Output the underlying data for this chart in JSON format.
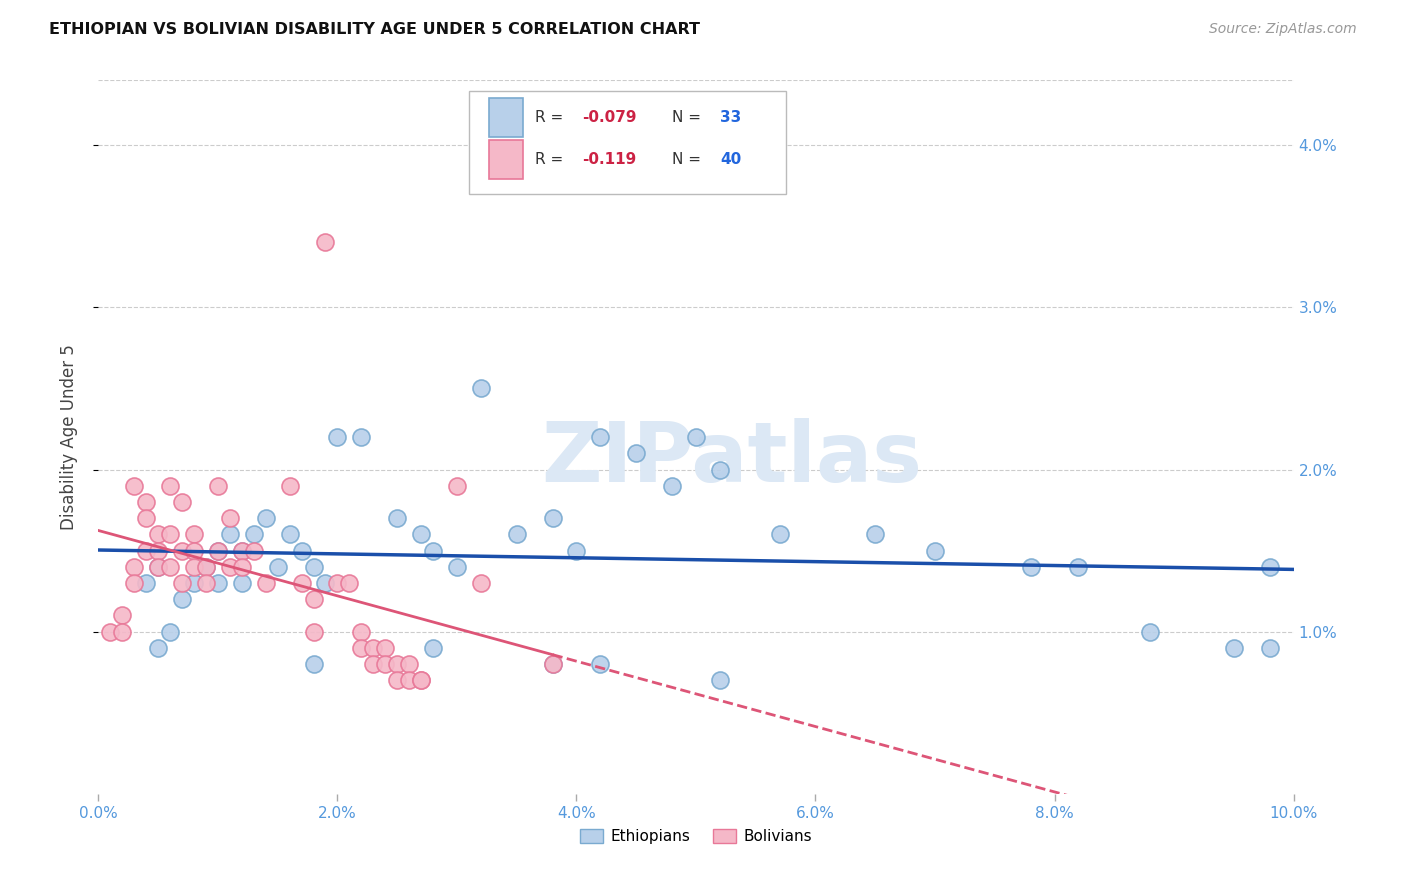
{
  "title": "ETHIOPIAN VS BOLIVIAN DISABILITY AGE UNDER 5 CORRELATION CHART",
  "source": "Source: ZipAtlas.com",
  "ylabel": "Disability Age Under 5",
  "xlim": [
    0.0,
    0.1
  ],
  "ylim": [
    0.0,
    0.044
  ],
  "ytick_positions": [
    0.01,
    0.02,
    0.03,
    0.04
  ],
  "xtick_positions": [
    0.0,
    0.02,
    0.04,
    0.06,
    0.08,
    0.1
  ],
  "legend_label_ethiopians": "Ethiopians",
  "legend_label_bolivians": "Bolivians",
  "ethiopians_scatter": [
    [
      0.004,
      0.013
    ],
    [
      0.005,
      0.014
    ],
    [
      0.006,
      0.01
    ],
    [
      0.007,
      0.012
    ],
    [
      0.008,
      0.013
    ],
    [
      0.009,
      0.014
    ],
    [
      0.01,
      0.015
    ],
    [
      0.01,
      0.013
    ],
    [
      0.011,
      0.016
    ],
    [
      0.012,
      0.015
    ],
    [
      0.012,
      0.013
    ],
    [
      0.013,
      0.016
    ],
    [
      0.014,
      0.017
    ],
    [
      0.015,
      0.014
    ],
    [
      0.016,
      0.016
    ],
    [
      0.017,
      0.015
    ],
    [
      0.018,
      0.014
    ],
    [
      0.019,
      0.013
    ],
    [
      0.02,
      0.022
    ],
    [
      0.022,
      0.022
    ],
    [
      0.025,
      0.017
    ],
    [
      0.027,
      0.016
    ],
    [
      0.028,
      0.015
    ],
    [
      0.03,
      0.014
    ],
    [
      0.032,
      0.025
    ],
    [
      0.035,
      0.016
    ],
    [
      0.038,
      0.017
    ],
    [
      0.04,
      0.015
    ],
    [
      0.042,
      0.022
    ],
    [
      0.045,
      0.021
    ],
    [
      0.05,
      0.022
    ],
    [
      0.052,
      0.02
    ],
    [
      0.057,
      0.016
    ],
    [
      0.005,
      0.009
    ],
    [
      0.018,
      0.008
    ],
    [
      0.028,
      0.009
    ],
    [
      0.038,
      0.008
    ],
    [
      0.042,
      0.008
    ],
    [
      0.048,
      0.019
    ],
    [
      0.052,
      0.007
    ],
    [
      0.065,
      0.016
    ],
    [
      0.07,
      0.015
    ],
    [
      0.078,
      0.014
    ],
    [
      0.082,
      0.014
    ],
    [
      0.088,
      0.01
    ],
    [
      0.095,
      0.009
    ],
    [
      0.098,
      0.014
    ],
    [
      0.098,
      0.009
    ]
  ],
  "bolivians_scatter": [
    [
      0.001,
      0.01
    ],
    [
      0.002,
      0.011
    ],
    [
      0.002,
      0.01
    ],
    [
      0.003,
      0.014
    ],
    [
      0.003,
      0.013
    ],
    [
      0.003,
      0.019
    ],
    [
      0.004,
      0.018
    ],
    [
      0.004,
      0.015
    ],
    [
      0.004,
      0.017
    ],
    [
      0.005,
      0.016
    ],
    [
      0.005,
      0.015
    ],
    [
      0.005,
      0.014
    ],
    [
      0.006,
      0.019
    ],
    [
      0.006,
      0.016
    ],
    [
      0.006,
      0.014
    ],
    [
      0.007,
      0.018
    ],
    [
      0.007,
      0.015
    ],
    [
      0.007,
      0.013
    ],
    [
      0.008,
      0.016
    ],
    [
      0.008,
      0.015
    ],
    [
      0.008,
      0.014
    ],
    [
      0.009,
      0.014
    ],
    [
      0.009,
      0.013
    ],
    [
      0.01,
      0.019
    ],
    [
      0.01,
      0.015
    ],
    [
      0.011,
      0.017
    ],
    [
      0.011,
      0.014
    ],
    [
      0.012,
      0.015
    ],
    [
      0.012,
      0.014
    ],
    [
      0.013,
      0.015
    ],
    [
      0.014,
      0.013
    ],
    [
      0.016,
      0.019
    ],
    [
      0.017,
      0.013
    ],
    [
      0.018,
      0.012
    ],
    [
      0.018,
      0.01
    ],
    [
      0.019,
      0.034
    ],
    [
      0.02,
      0.013
    ],
    [
      0.021,
      0.013
    ],
    [
      0.022,
      0.01
    ],
    [
      0.022,
      0.009
    ],
    [
      0.023,
      0.009
    ],
    [
      0.023,
      0.008
    ],
    [
      0.024,
      0.009
    ],
    [
      0.024,
      0.008
    ],
    [
      0.025,
      0.008
    ],
    [
      0.025,
      0.007
    ],
    [
      0.026,
      0.008
    ],
    [
      0.026,
      0.007
    ],
    [
      0.027,
      0.007
    ],
    [
      0.027,
      0.007
    ],
    [
      0.03,
      0.019
    ],
    [
      0.032,
      0.013
    ],
    [
      0.038,
      0.008
    ]
  ],
  "blue_line_color": "#1a4faa",
  "pink_line_color": "#dd5577",
  "background_color": "#ffffff",
  "grid_color": "#cccccc",
  "watermark_color": "#dce8f5"
}
